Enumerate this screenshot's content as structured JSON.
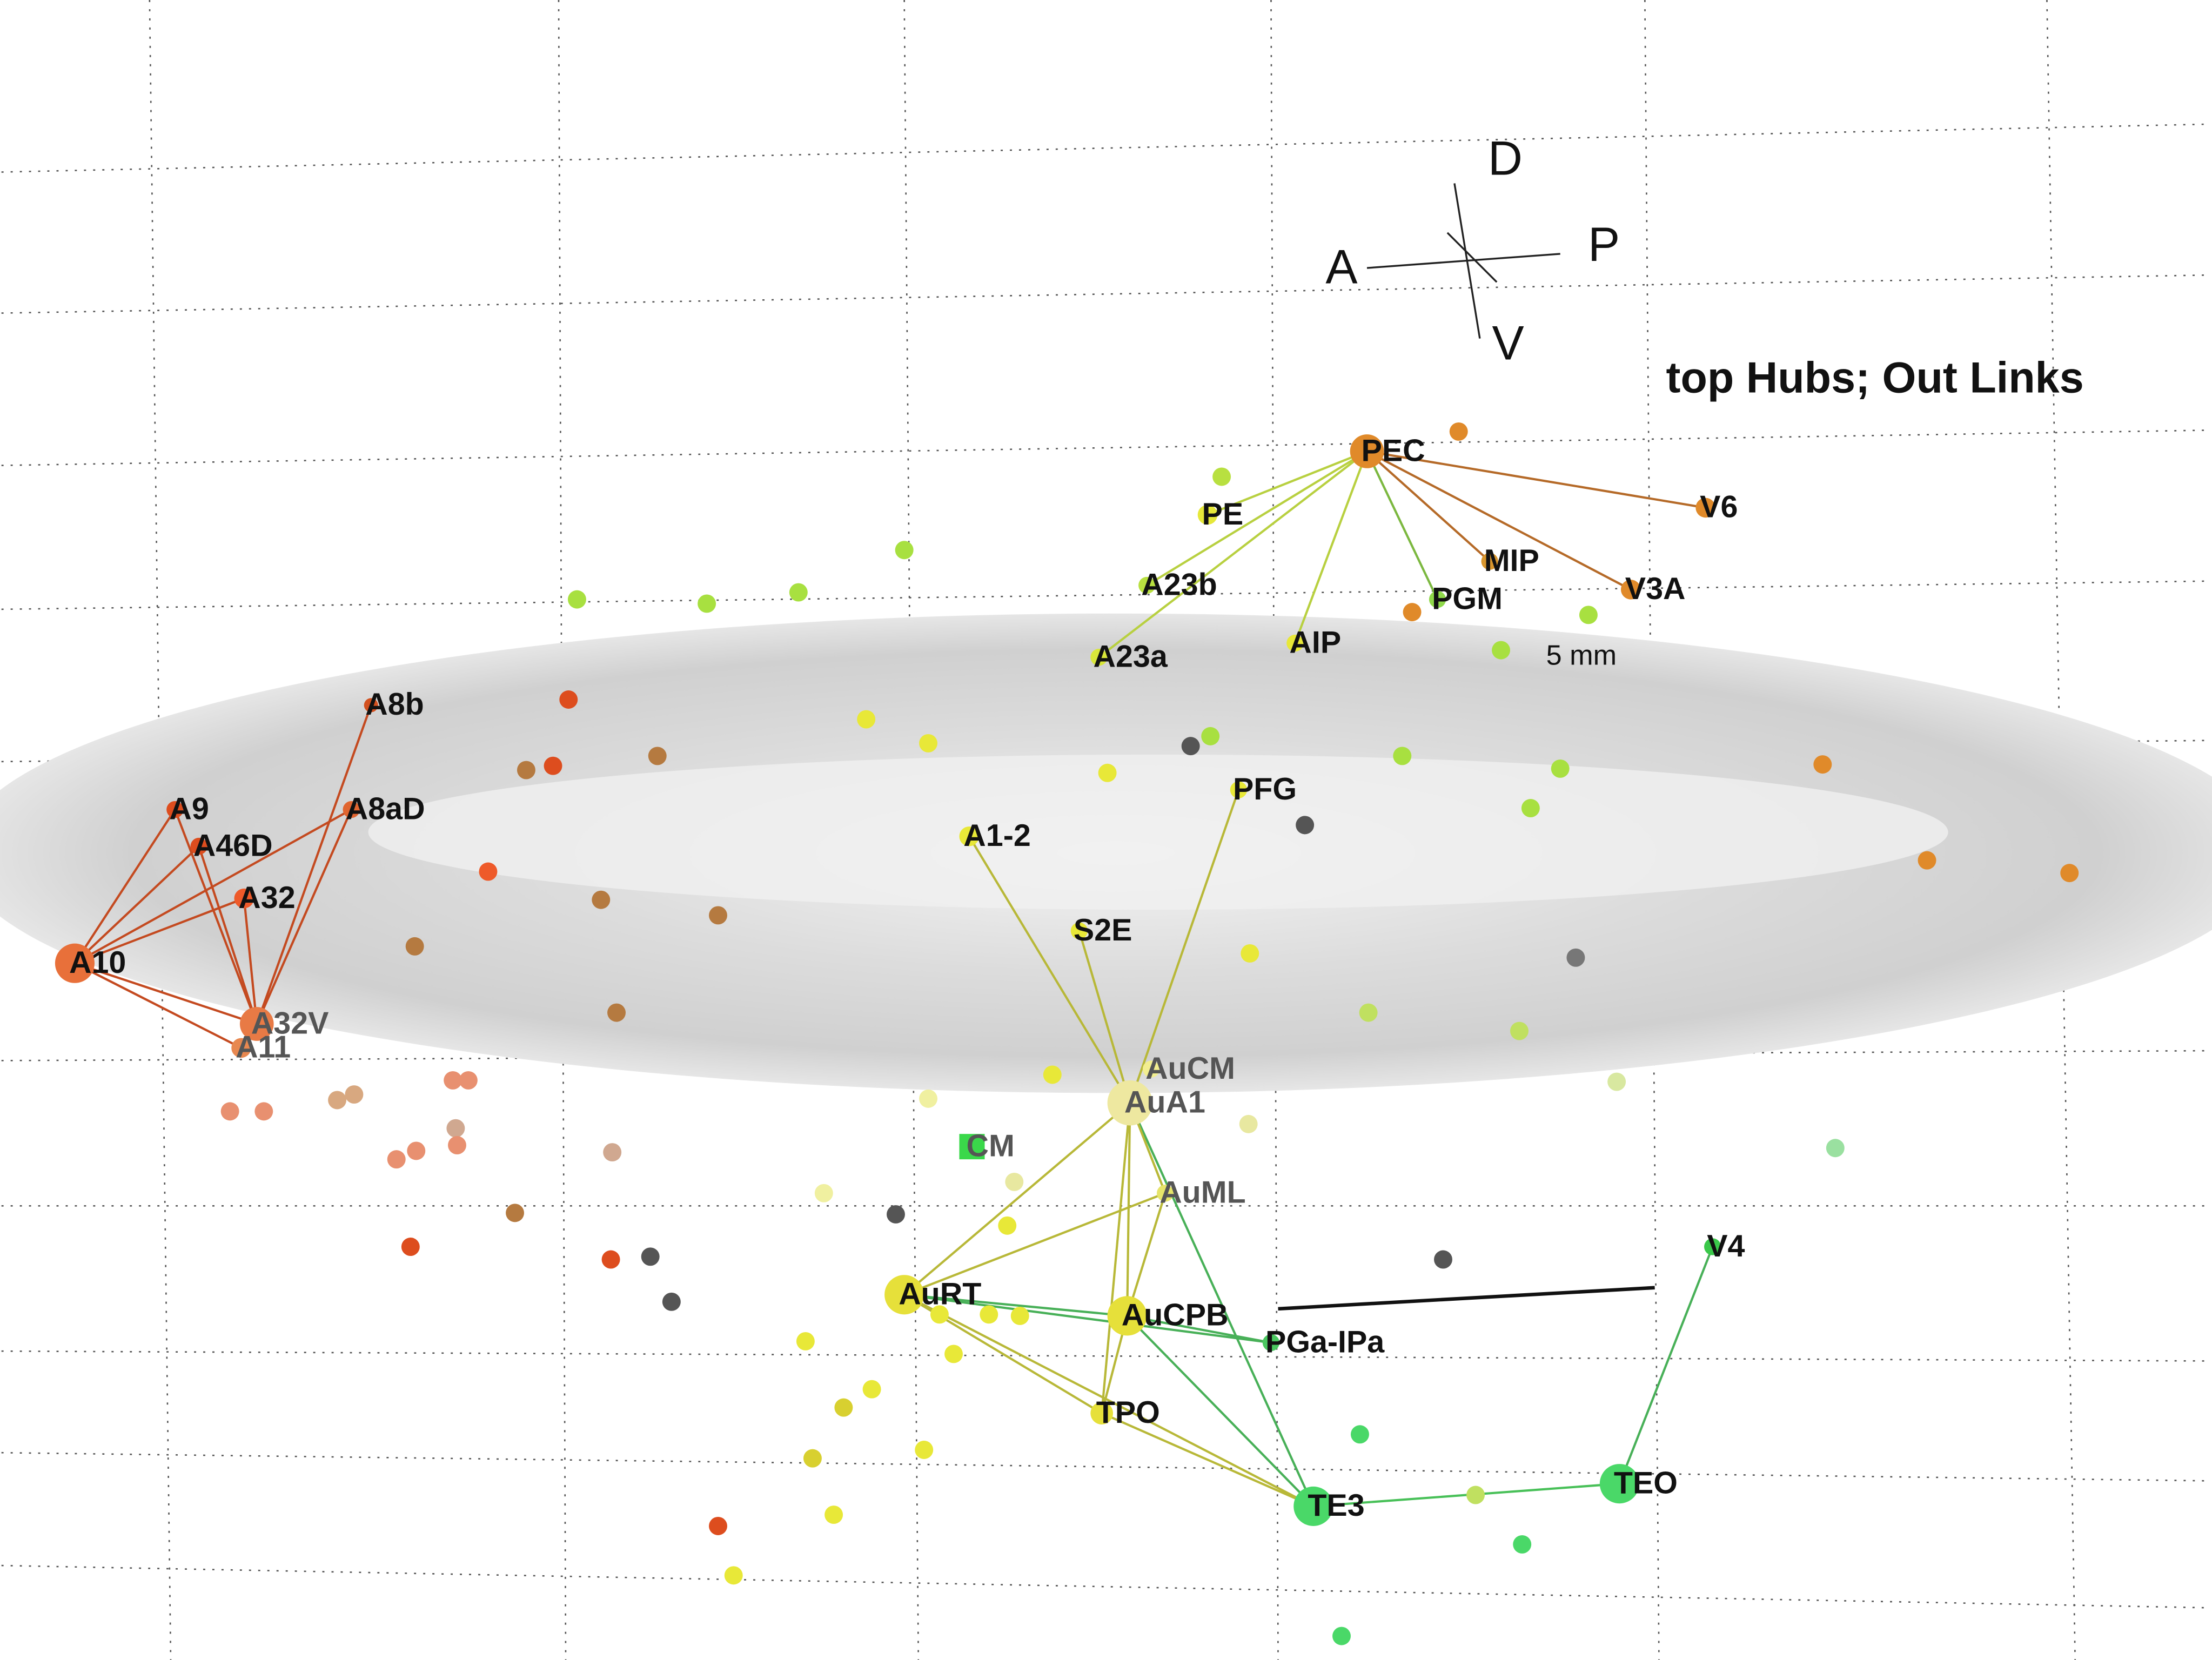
{
  "title": "top Hubs; Out Links",
  "orientation": {
    "dorsal": "D",
    "posterior": "P",
    "anterior": "A",
    "ventral": "V"
  },
  "scale_bar": "5 mm",
  "nodes": [
    "PEC",
    "PE",
    "A23b",
    "A23a",
    "AIP",
    "PGM",
    "MIP",
    "V3A",
    "V6",
    "A8b",
    "A9",
    "A46D",
    "A8aD",
    "A32",
    "A10",
    "A32V",
    "A11",
    "PFG",
    "A1-2",
    "S2E",
    "AuCM",
    "AuA1",
    "CM",
    "AuML",
    "AuRT",
    "AuCPB",
    "PGa-IPa",
    "TPO",
    "V4",
    "TE3",
    "TEO"
  ]
}
